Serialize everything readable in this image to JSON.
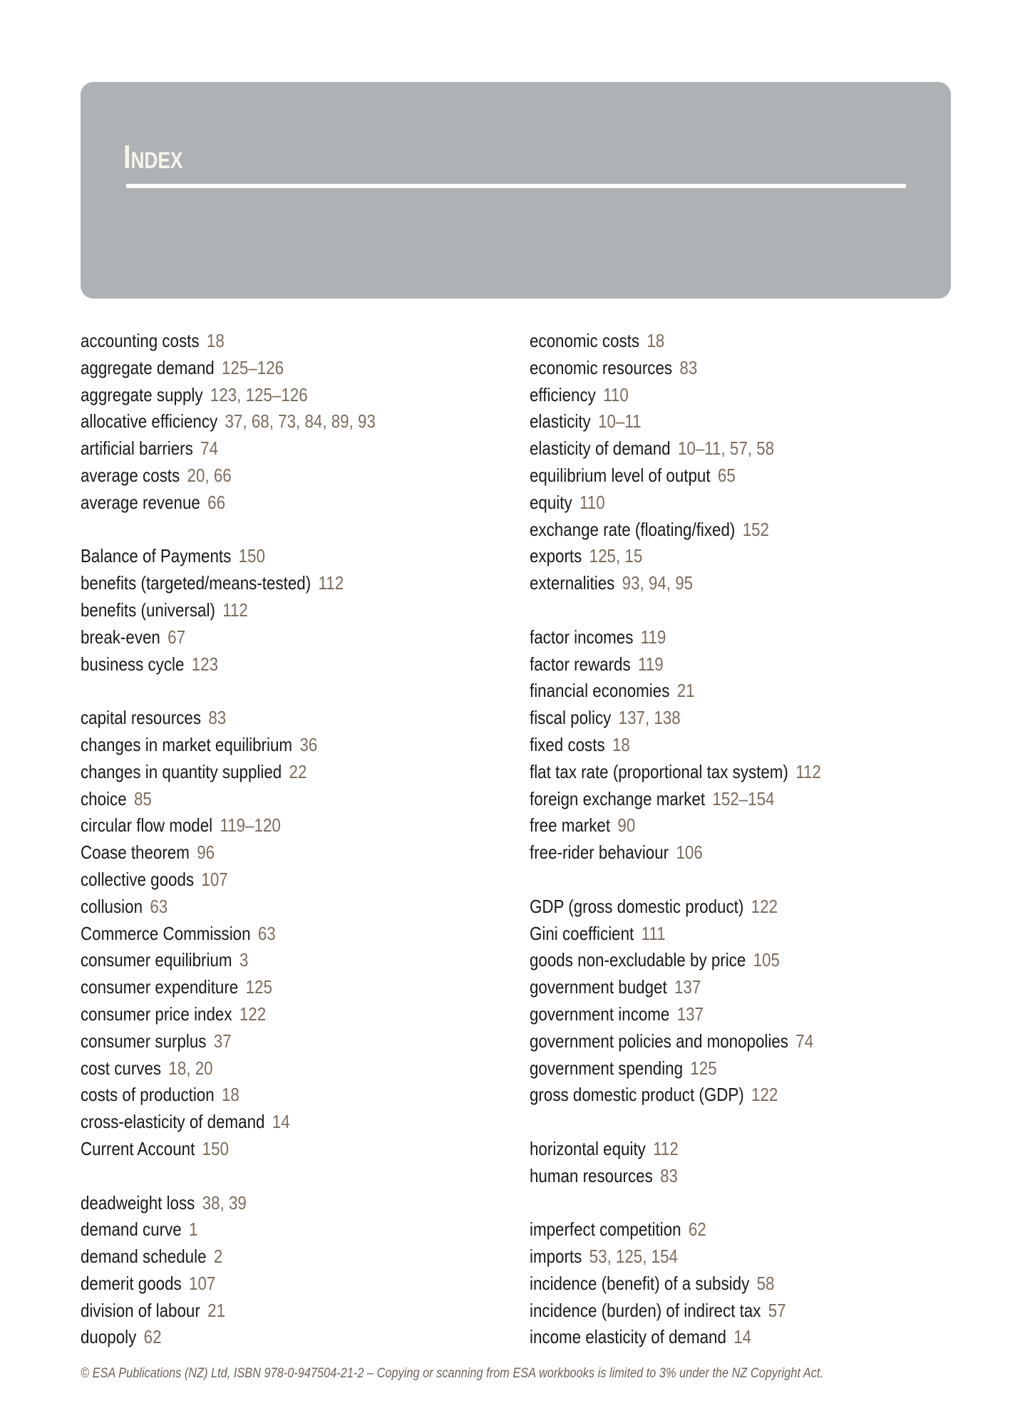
{
  "header": {
    "title": "Index",
    "background_color": "#aeb2b4"
  },
  "colors": {
    "term": "#1a1a1a",
    "pages": "#7c6d5e"
  },
  "columns": [
    [
      [
        {
          "term": "accounting costs",
          "pages": "18"
        },
        {
          "term": "aggregate demand",
          "pages": "125–126"
        },
        {
          "term": "aggregate supply",
          "pages": "123, 125–126"
        },
        {
          "term": "allocative efficiency",
          "pages": "37, 68, 73, 84, 89, 93"
        },
        {
          "term": "artificial barriers",
          "pages": "74"
        },
        {
          "term": "average costs",
          "pages": "20, 66"
        },
        {
          "term": "average revenue",
          "pages": "66"
        }
      ],
      [
        {
          "term": "Balance of Payments",
          "pages": "150"
        },
        {
          "term": "benefits (targeted/means-tested)",
          "pages": "112"
        },
        {
          "term": "benefits (universal)",
          "pages": "112"
        },
        {
          "term": "break-even",
          "pages": "67"
        },
        {
          "term": "business cycle",
          "pages": "123"
        }
      ],
      [
        {
          "term": "capital resources",
          "pages": "83"
        },
        {
          "term": "changes in market equilibrium",
          "pages": "36"
        },
        {
          "term": "changes in quantity supplied",
          "pages": "22"
        },
        {
          "term": "choice",
          "pages": "85"
        },
        {
          "term": "circular flow model",
          "pages": "119–120"
        },
        {
          "term": "Coase theorem",
          "pages": "96"
        },
        {
          "term": "collective goods",
          "pages": "107"
        },
        {
          "term": "collusion",
          "pages": "63"
        },
        {
          "term": "Commerce Commission",
          "pages": "63"
        },
        {
          "term": "consumer equilibrium",
          "pages": "3"
        },
        {
          "term": "consumer expenditure",
          "pages": "125"
        },
        {
          "term": "consumer price index",
          "pages": "122"
        },
        {
          "term": "consumer surplus",
          "pages": "37"
        },
        {
          "term": "cost curves",
          "pages": "18, 20"
        },
        {
          "term": "costs of production",
          "pages": "18"
        },
        {
          "term": "cross-elasticity of demand",
          "pages": "14"
        },
        {
          "term": "Current Account",
          "pages": "150"
        }
      ],
      [
        {
          "term": "deadweight loss",
          "pages": "38, 39"
        },
        {
          "term": "demand curve",
          "pages": "1"
        },
        {
          "term": "demand schedule",
          "pages": "2"
        },
        {
          "term": "demerit goods",
          "pages": "107"
        },
        {
          "term": "division of labour",
          "pages": "21"
        },
        {
          "term": "duopoly",
          "pages": "62"
        }
      ]
    ],
    [
      [
        {
          "term": "economic costs",
          "pages": "18"
        },
        {
          "term": "economic resources",
          "pages": "83"
        },
        {
          "term": "efficiency",
          "pages": "110"
        },
        {
          "term": "elasticity",
          "pages": "10–11"
        },
        {
          "term": "elasticity of demand",
          "pages": "10–11, 57, 58"
        },
        {
          "term": "equilibrium level of output",
          "pages": "65"
        },
        {
          "term": "equity",
          "pages": "110"
        },
        {
          "term": "exchange rate (floating/fixed)",
          "pages": "152"
        },
        {
          "term": "exports",
          "pages": "125, 15"
        },
        {
          "term": "externalities",
          "pages": "93, 94, 95"
        }
      ],
      [
        {
          "term": "factor incomes",
          "pages": "119"
        },
        {
          "term": "factor rewards",
          "pages": "119"
        },
        {
          "term": "financial economies",
          "pages": "21"
        },
        {
          "term": "fiscal policy",
          "pages": "137, 138"
        },
        {
          "term": "fixed costs",
          "pages": "18"
        },
        {
          "term": "flat tax rate (proportional tax system)",
          "pages": "112"
        },
        {
          "term": "foreign exchange market",
          "pages": "152–154"
        },
        {
          "term": "free market",
          "pages": "90"
        },
        {
          "term": "free-rider behaviour",
          "pages": "106"
        }
      ],
      [
        {
          "term": "GDP (gross domestic product)",
          "pages": "122"
        },
        {
          "term": "Gini coefficient",
          "pages": "111"
        },
        {
          "term": "goods non-excludable by price",
          "pages": "105"
        },
        {
          "term": "government budget",
          "pages": "137"
        },
        {
          "term": "government income",
          "pages": "137"
        },
        {
          "term": "government policies and monopolies",
          "pages": "74"
        },
        {
          "term": "government spending",
          "pages": "125"
        },
        {
          "term": "gross domestic product (GDP)",
          "pages": "122"
        }
      ],
      [
        {
          "term": "horizontal equity",
          "pages": "112"
        },
        {
          "term": "human resources",
          "pages": "83"
        }
      ],
      [
        {
          "term": "imperfect competition",
          "pages": "62"
        },
        {
          "term": "imports",
          "pages": "53, 125, 154"
        },
        {
          "term": "incidence (benefit) of a subsidy",
          "pages": "58"
        },
        {
          "term": "incidence (burden) of indirect tax",
          "pages": "57"
        },
        {
          "term": "income elasticity of demand",
          "pages": "14"
        }
      ]
    ]
  ],
  "footer": {
    "text": "© ESA Publications (NZ) Ltd, ISBN 978-0-947504-21-2 –  Copying or scanning from ESA workbooks is limited to 3% under the NZ Copyright Act."
  }
}
